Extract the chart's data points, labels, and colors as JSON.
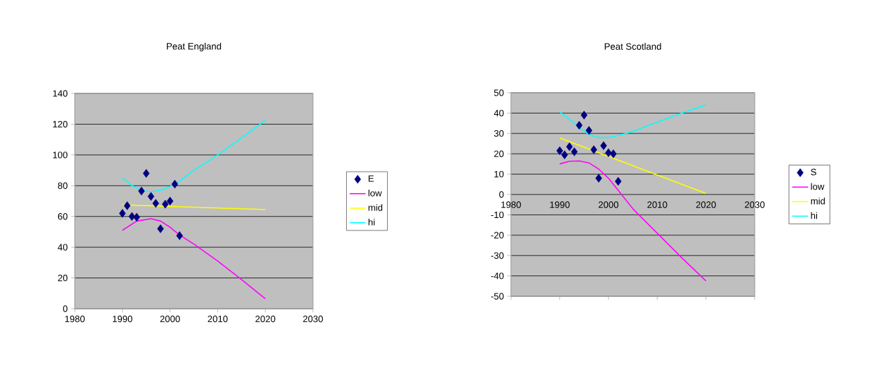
{
  "chart_data": [
    {
      "type": "scatter",
      "title": "Peat England",
      "xlim": [
        1980,
        2030
      ],
      "xticks": [
        1980,
        1990,
        2000,
        2010,
        2020,
        2030
      ],
      "ylim": [
        0,
        140
      ],
      "yticks": [
        0,
        20,
        40,
        60,
        80,
        100,
        120,
        140
      ],
      "grid": "y",
      "legend": "right",
      "series": [
        {
          "name": "E",
          "marker": "diamond",
          "color": "#000080",
          "x": [
            1990,
            1991,
            1992,
            1993,
            1994,
            1995,
            1996,
            1997,
            1998,
            1999,
            2000,
            2001,
            2002
          ],
          "values": [
            62,
            67,
            60,
            59.5,
            76.5,
            88,
            73,
            68.5,
            52,
            68,
            70,
            81,
            47.5
          ]
        },
        {
          "name": "low",
          "type": "line",
          "marker": "none",
          "color": "#ff00ff",
          "x": [
            1990,
            1993,
            1996,
            1998,
            2000,
            2002,
            2005,
            2010,
            2015,
            2020
          ],
          "values": [
            51,
            57,
            58.5,
            57,
            53,
            48,
            42,
            31,
            19,
            6.5
          ]
        },
        {
          "name": "mid",
          "type": "line",
          "marker": "none",
          "color": "#ffff00",
          "x": [
            1990,
            2000,
            2010,
            2020
          ],
          "values": [
            67.5,
            66.5,
            65.5,
            64.5
          ]
        },
        {
          "name": "hi",
          "type": "line",
          "marker": "none",
          "color": "#00ffff",
          "x": [
            1990,
            1992,
            1994,
            1996,
            1998,
            2000,
            2002,
            2005,
            2010,
            2015,
            2020
          ],
          "values": [
            85,
            80,
            77,
            76,
            77,
            79.5,
            83,
            90,
            100,
            111,
            122.5
          ]
        }
      ]
    },
    {
      "type": "scatter",
      "title": "Peat Scotland",
      "xlim": [
        1980,
        2030
      ],
      "xticks": [
        1980,
        1990,
        2000,
        2010,
        2020,
        2030
      ],
      "ylim": [
        -50,
        50
      ],
      "yticks": [
        -50,
        -40,
        -30,
        -20,
        -10,
        0,
        10,
        20,
        30,
        40,
        50
      ],
      "grid": "y",
      "legend": "right",
      "series": [
        {
          "name": "S",
          "marker": "diamond",
          "color": "#000080",
          "x": [
            1990,
            1991,
            1992,
            1993,
            1994,
            1995,
            1996,
            1997,
            1998,
            1999,
            2000,
            2001,
            2002
          ],
          "values": [
            21.5,
            19.5,
            23.5,
            21,
            34,
            39,
            31.5,
            22,
            8,
            24,
            20.5,
            20,
            6.5
          ]
        },
        {
          "name": "low",
          "type": "line",
          "marker": "none",
          "color": "#ff00ff",
          "x": [
            1990,
            1992,
            1994,
            1996,
            1998,
            2000,
            2002,
            2005,
            2010,
            2015,
            2020
          ],
          "values": [
            15,
            16.3,
            16.5,
            15.5,
            12.5,
            8,
            2,
            -7,
            -19,
            -31,
            -42.5
          ]
        },
        {
          "name": "mid",
          "type": "line",
          "marker": "none",
          "color": "#ffff00",
          "x": [
            1990,
            2000,
            2010,
            2020
          ],
          "values": [
            27.8,
            18.7,
            9.6,
            0.5
          ]
        },
        {
          "name": "hi",
          "type": "line",
          "marker": "none",
          "color": "#00ffff",
          "x": [
            1990,
            1992,
            1994,
            1996,
            1998,
            2000,
            2002,
            2005,
            2010,
            2015,
            2020
          ],
          "values": [
            40.5,
            37,
            33,
            29.5,
            28,
            28,
            29,
            31,
            35.5,
            40,
            44
          ]
        }
      ]
    }
  ]
}
